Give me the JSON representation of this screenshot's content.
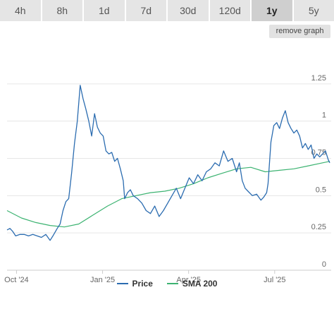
{
  "tabs": [
    {
      "label": "4h",
      "active": false
    },
    {
      "label": "8h",
      "active": false
    },
    {
      "label": "1d",
      "active": false
    },
    {
      "label": "7d",
      "active": false
    },
    {
      "label": "30d",
      "active": false
    },
    {
      "label": "120d",
      "active": false
    },
    {
      "label": "1y",
      "active": true
    },
    {
      "label": "5y",
      "active": false
    }
  ],
  "remove_graph_label": "remove graph",
  "chart_data": {
    "type": "line",
    "x_ticks": [
      "Oct '24",
      "Jan '25",
      "Apr '25",
      "Jul '25"
    ],
    "x_tick_positions": [
      0.33,
      3.33,
      6.33,
      9.33
    ],
    "x_unit": "months since 2024-09-20",
    "x_range": [
      0,
      11.3
    ],
    "y_ticks": [
      "0",
      "0.25",
      "0.5",
      "0.75",
      "1",
      "1.25"
    ],
    "y_tick_values": [
      0,
      0.25,
      0.5,
      0.75,
      1,
      1.25
    ],
    "ylim": [
      0,
      1.5
    ],
    "grid": true,
    "legend_position": "bottom",
    "series": [
      {
        "name": "Price",
        "color": "#2b6cb0",
        "points": [
          [
            0.0,
            0.27
          ],
          [
            0.1,
            0.28
          ],
          [
            0.2,
            0.26
          ],
          [
            0.3,
            0.23
          ],
          [
            0.45,
            0.24
          ],
          [
            0.6,
            0.24
          ],
          [
            0.75,
            0.23
          ],
          [
            0.9,
            0.24
          ],
          [
            1.05,
            0.23
          ],
          [
            1.2,
            0.22
          ],
          [
            1.35,
            0.24
          ],
          [
            1.5,
            0.2
          ],
          [
            1.6,
            0.23
          ],
          [
            1.75,
            0.28
          ],
          [
            1.85,
            0.31
          ],
          [
            1.95,
            0.4
          ],
          [
            2.05,
            0.46
          ],
          [
            2.15,
            0.48
          ],
          [
            2.25,
            0.65
          ],
          [
            2.35,
            0.85
          ],
          [
            2.45,
            1.0
          ],
          [
            2.55,
            1.24
          ],
          [
            2.65,
            1.15
          ],
          [
            2.75,
            1.08
          ],
          [
            2.85,
            1.0
          ],
          [
            2.95,
            0.9
          ],
          [
            3.05,
            1.05
          ],
          [
            3.15,
            0.96
          ],
          [
            3.25,
            0.92
          ],
          [
            3.35,
            0.9
          ],
          [
            3.45,
            0.8
          ],
          [
            3.55,
            0.78
          ],
          [
            3.65,
            0.79
          ],
          [
            3.75,
            0.73
          ],
          [
            3.85,
            0.75
          ],
          [
            3.95,
            0.68
          ],
          [
            4.05,
            0.6
          ],
          [
            4.1,
            0.48
          ],
          [
            4.2,
            0.52
          ],
          [
            4.3,
            0.54
          ],
          [
            4.4,
            0.5
          ],
          [
            4.55,
            0.48
          ],
          [
            4.7,
            0.45
          ],
          [
            4.85,
            0.4
          ],
          [
            5.0,
            0.38
          ],
          [
            5.15,
            0.43
          ],
          [
            5.3,
            0.36
          ],
          [
            5.45,
            0.4
          ],
          [
            5.6,
            0.45
          ],
          [
            5.75,
            0.5
          ],
          [
            5.9,
            0.55
          ],
          [
            6.05,
            0.48
          ],
          [
            6.2,
            0.55
          ],
          [
            6.35,
            0.62
          ],
          [
            6.5,
            0.58
          ],
          [
            6.65,
            0.64
          ],
          [
            6.8,
            0.6
          ],
          [
            6.95,
            0.66
          ],
          [
            7.1,
            0.68
          ],
          [
            7.25,
            0.72
          ],
          [
            7.4,
            0.7
          ],
          [
            7.55,
            0.8
          ],
          [
            7.7,
            0.73
          ],
          [
            7.85,
            0.75
          ],
          [
            8.0,
            0.66
          ],
          [
            8.1,
            0.72
          ],
          [
            8.2,
            0.6
          ],
          [
            8.3,
            0.55
          ],
          [
            8.4,
            0.53
          ],
          [
            8.55,
            0.5
          ],
          [
            8.7,
            0.51
          ],
          [
            8.85,
            0.47
          ],
          [
            8.95,
            0.49
          ],
          [
            9.05,
            0.52
          ],
          [
            9.1,
            0.58
          ],
          [
            9.2,
            0.86
          ],
          [
            9.3,
            0.97
          ],
          [
            9.4,
            0.99
          ],
          [
            9.5,
            0.95
          ],
          [
            9.6,
            1.02
          ],
          [
            9.7,
            1.07
          ],
          [
            9.8,
            0.99
          ],
          [
            9.9,
            0.95
          ],
          [
            10.0,
            0.92
          ],
          [
            10.1,
            0.94
          ],
          [
            10.2,
            0.9
          ],
          [
            10.3,
            0.82
          ],
          [
            10.4,
            0.85
          ],
          [
            10.5,
            0.81
          ],
          [
            10.6,
            0.84
          ],
          [
            10.7,
            0.75
          ],
          [
            10.8,
            0.78
          ],
          [
            10.9,
            0.76
          ],
          [
            11.0,
            0.78
          ],
          [
            11.1,
            0.8
          ],
          [
            11.2,
            0.74
          ],
          [
            11.25,
            0.72
          ]
        ]
      },
      {
        "name": "SMA 200",
        "color": "#3cb371",
        "points": [
          [
            0.0,
            0.4
          ],
          [
            0.5,
            0.35
          ],
          [
            1.0,
            0.32
          ],
          [
            1.5,
            0.3
          ],
          [
            2.0,
            0.29
          ],
          [
            2.5,
            0.31
          ],
          [
            3.0,
            0.37
          ],
          [
            3.5,
            0.43
          ],
          [
            4.0,
            0.48
          ],
          [
            4.5,
            0.5
          ],
          [
            5.0,
            0.52
          ],
          [
            5.5,
            0.53
          ],
          [
            6.0,
            0.55
          ],
          [
            6.5,
            0.58
          ],
          [
            7.0,
            0.62
          ],
          [
            7.5,
            0.65
          ],
          [
            8.0,
            0.68
          ],
          [
            8.5,
            0.69
          ],
          [
            9.0,
            0.66
          ],
          [
            9.5,
            0.67
          ],
          [
            10.0,
            0.68
          ],
          [
            10.5,
            0.7
          ],
          [
            11.0,
            0.72
          ],
          [
            11.25,
            0.73
          ]
        ]
      }
    ]
  }
}
